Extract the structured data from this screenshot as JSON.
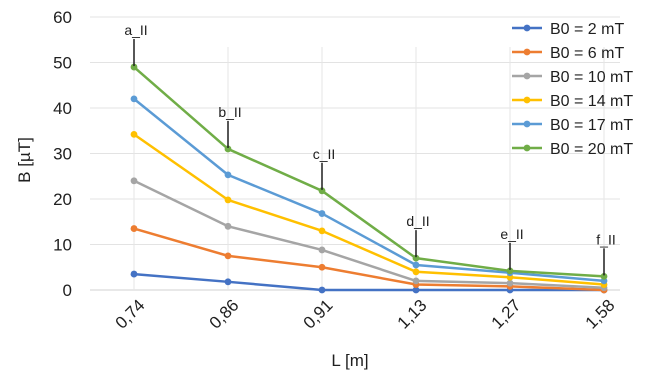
{
  "chart_data": {
    "type": "line",
    "xlabel": "L [m]",
    "ylabel": "B [µT]",
    "categories": [
      "0,74",
      "0,86",
      "0,91",
      "1,13",
      "1,27",
      "1,58"
    ],
    "ylim": [
      0,
      60
    ],
    "yticks": [
      0,
      10,
      20,
      30,
      40,
      50,
      60
    ],
    "grid": "horizontal",
    "legend_position": "right",
    "series": [
      {
        "name": "B0 = 2 mT",
        "color": "#4472C4",
        "values": [
          3.5,
          1.8,
          0.0,
          0.0,
          0.0,
          0.0
        ]
      },
      {
        "name": "B0 = 6 mT",
        "color": "#ED7D31",
        "values": [
          13.5,
          7.5,
          5.0,
          1.2,
          0.8,
          0.0
        ]
      },
      {
        "name": "B0 = 10 mT",
        "color": "#A5A5A5",
        "values": [
          24.0,
          14.0,
          8.8,
          2.0,
          1.5,
          0.5
        ]
      },
      {
        "name": "B0 = 14 mT",
        "color": "#FFC000",
        "values": [
          34.2,
          19.8,
          13.0,
          4.0,
          2.8,
          1.2
        ]
      },
      {
        "name": "B0 = 17 mT",
        "color": "#5B9BD5",
        "values": [
          42.0,
          25.3,
          16.8,
          5.5,
          3.8,
          2.0
        ]
      },
      {
        "name": "B0 = 20 mT",
        "color": "#70AD47",
        "values": [
          49.0,
          31.0,
          21.8,
          7.0,
          4.2,
          3.0
        ]
      }
    ],
    "annotations": [
      "a_II",
      "b_II",
      "c_II",
      "d_II",
      "e_II",
      "f_II"
    ]
  }
}
